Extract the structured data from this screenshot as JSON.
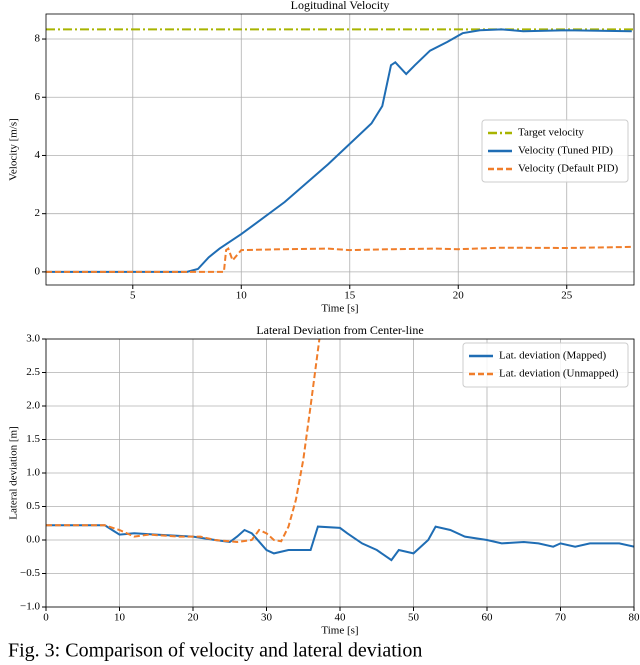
{
  "chart_data": [
    {
      "type": "line",
      "title": "Logitudinal Velocity",
      "xlabel": "Time [s]",
      "ylabel": "Velocity [m/s]",
      "xlim": [
        1,
        28.1
      ],
      "ylim": [
        -0.45,
        8.86
      ],
      "xticks": [
        5,
        10,
        15,
        20,
        25
      ],
      "yticks": [
        0,
        2,
        4,
        6,
        8
      ],
      "grid": true,
      "legend": "center right",
      "series": [
        {
          "name": "Target velocity",
          "color": "#a8b400",
          "linestyle": "dashdot",
          "x": [
            1,
            28.1
          ],
          "values": [
            8.33,
            8.33
          ]
        },
        {
          "name": "Velocity (Tuned PID)",
          "color": "#1f6db4",
          "linestyle": "solid",
          "x": [
            1,
            7.5,
            8,
            8.5,
            9,
            10,
            12,
            14,
            16,
            16.5,
            16.9,
            17.1,
            17.6,
            18,
            18.7,
            19.5,
            20.2,
            21,
            22,
            23,
            25,
            28
          ],
          "values": [
            0,
            0,
            0.1,
            0.5,
            0.8,
            1.3,
            2.4,
            3.7,
            5.1,
            5.7,
            7.1,
            7.2,
            6.8,
            7.1,
            7.6,
            7.9,
            8.2,
            8.3,
            8.33,
            8.27,
            8.3,
            8.27
          ]
        },
        {
          "name": "Velocity (Default PID)",
          "color": "#f07d2a",
          "linestyle": "dashed",
          "x": [
            1,
            9.2,
            9.3,
            9.4,
            9.6,
            10,
            12,
            14,
            15,
            17,
            19,
            20,
            22,
            25,
            28
          ],
          "values": [
            0,
            0,
            0.75,
            0.8,
            0.4,
            0.75,
            0.78,
            0.8,
            0.75,
            0.78,
            0.8,
            0.78,
            0.83,
            0.82,
            0.86
          ]
        }
      ]
    },
    {
      "type": "line",
      "title": "Lateral Deviation from Center-line",
      "xlabel": "Time [s]",
      "ylabel": "Lateral deviation [m]",
      "xlim": [
        0,
        80
      ],
      "ylim": [
        -1,
        3
      ],
      "xticks": [
        0,
        10,
        20,
        30,
        40,
        50,
        60,
        70,
        80
      ],
      "yticks": [
        {
          "value": -1,
          "label": "−1.0"
        },
        {
          "value": -0.5,
          "label": "−0.5"
        },
        {
          "value": 0,
          "label": "0.0"
        },
        {
          "value": 0.5,
          "label": "0.5"
        },
        {
          "value": 1,
          "label": "1.0"
        },
        {
          "value": 1.5,
          "label": "1.5"
        },
        {
          "value": 2,
          "label": "2.0"
        },
        {
          "value": 2.5,
          "label": "2.5"
        },
        {
          "value": 3,
          "label": "3.0"
        }
      ],
      "grid": true,
      "legend": "upper right",
      "series": [
        {
          "name": "Lat. deviation (Mapped)",
          "color": "#1f6db4",
          "linestyle": "solid",
          "x": [
            0,
            8,
            9,
            10,
            12,
            15,
            20,
            23,
            25,
            26,
            27,
            28,
            30,
            31,
            33,
            36,
            37,
            40,
            41,
            43,
            45,
            47,
            48,
            50,
            52,
            53,
            55,
            57,
            60,
            62,
            65,
            67,
            69,
            70,
            72,
            74,
            76,
            78,
            80
          ],
          "values": [
            0.22,
            0.22,
            0.15,
            0.08,
            0.1,
            0.08,
            0.05,
            0,
            -0.03,
            0.05,
            0.15,
            0.1,
            -0.15,
            -0.2,
            -0.15,
            -0.15,
            0.2,
            0.18,
            0.1,
            -0.05,
            -0.15,
            -0.3,
            -0.15,
            -0.2,
            0,
            0.2,
            0.15,
            0.05,
            0,
            -0.05,
            -0.03,
            -0.05,
            -0.1,
            -0.05,
            -0.1,
            -0.05,
            -0.05,
            -0.05,
            -0.1
          ]
        },
        {
          "name": "Lat. deviation (Unmapped)",
          "color": "#f07d2a",
          "linestyle": "dashed",
          "x": [
            0,
            8,
            10,
            12,
            14,
            18,
            21,
            23,
            26,
            28,
            29,
            30,
            31,
            32,
            33,
            34,
            35,
            36,
            37.2
          ],
          "values": [
            0.22,
            0.22,
            0.15,
            0.05,
            0.08,
            0.05,
            0.05,
            0,
            -0.03,
            0,
            0.15,
            0.1,
            0,
            -0.02,
            0.2,
            0.6,
            1.2,
            2.0,
            3.0
          ]
        }
      ]
    }
  ],
  "caption": "Fig. 3: Comparison of velocity and lateral deviation"
}
